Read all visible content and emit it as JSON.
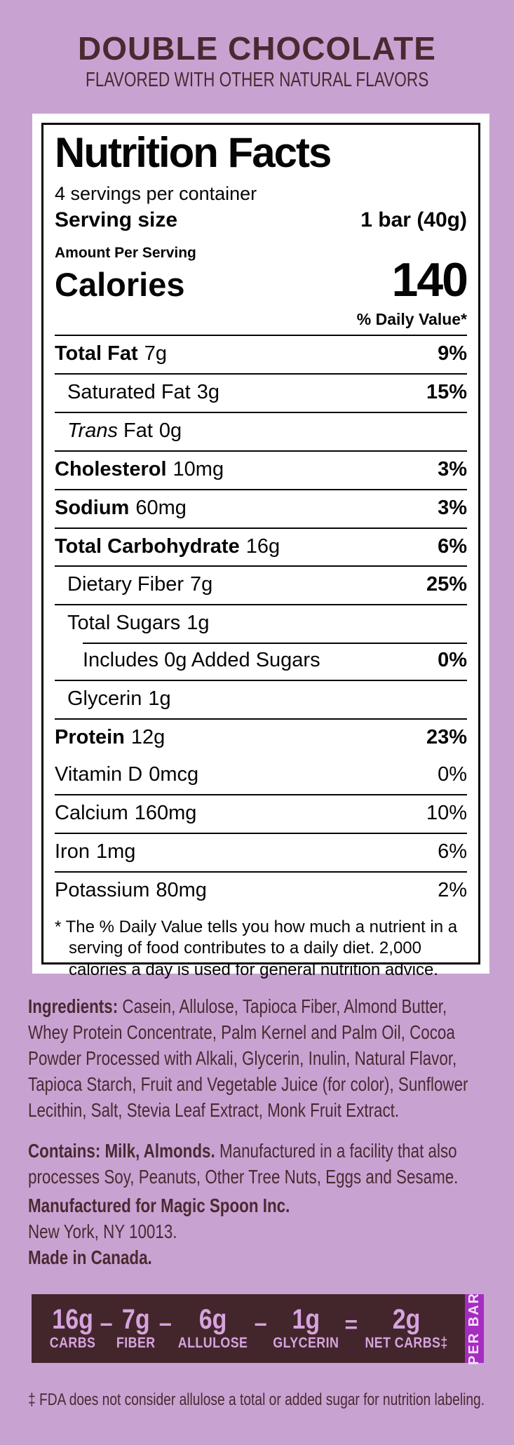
{
  "header": {
    "title": "DOUBLE CHOCOLATE",
    "subtitle": "FLAVORED WITH OTHER NATURAL FLAVORS"
  },
  "nutrition_facts": {
    "title": "Nutrition Facts",
    "servings_per_container": "4 servings per container",
    "serving_size_label": "Serving size",
    "serving_size_value": "1 bar (40g)",
    "amount_per_serving": "Amount Per Serving",
    "calories_label": "Calories",
    "calories_value": "140",
    "daily_value_header": "% Daily Value*",
    "rows": [
      {
        "name": "Total Fat",
        "amount": "7g",
        "dv": "9%"
      },
      {
        "name": "Saturated Fat",
        "amount": "3g",
        "dv": "15%"
      },
      {
        "name_italic": "Trans",
        "name": "Fat",
        "amount": "0g",
        "dv": ""
      },
      {
        "name": "Cholesterol",
        "amount": "10mg",
        "dv": "3%"
      },
      {
        "name": "Sodium",
        "amount": "60mg",
        "dv": "3%"
      },
      {
        "name": "Total Carbohydrate",
        "amount": "16g",
        "dv": "6%"
      },
      {
        "name": "Dietary Fiber",
        "amount": "7g",
        "dv": "25%"
      },
      {
        "name": "Total Sugars",
        "amount": "1g",
        "dv": ""
      },
      {
        "name": "Includes 0g Added Sugars",
        "amount": "",
        "dv": "0%"
      },
      {
        "name": "Glycerin",
        "amount": "1g",
        "dv": ""
      },
      {
        "name": "Protein",
        "amount": "12g",
        "dv": "23%"
      }
    ],
    "vitamins": [
      {
        "name": "Vitamin D",
        "amount": "0mcg",
        "dv": "0%"
      },
      {
        "name": "Calcium",
        "amount": "160mg",
        "dv": "10%"
      },
      {
        "name": "Iron",
        "amount": "1mg",
        "dv": "6%"
      },
      {
        "name": "Potassium",
        "amount": "80mg",
        "dv": "2%"
      }
    ],
    "footnote": "* The % Daily Value tells you how much a nutrient in a serving of food contributes to a daily diet. 2,000 calories a day is used for general nutrition advice."
  },
  "ingredients": {
    "label": "Ingredients:",
    "text": " Casein, Allulose, Tapioca Fiber, Almond Butter, Whey Protein Concentrate, Palm Kernel and Palm Oil, Cocoa Powder Processed with Alkali, Glycerin, Inulin, Natural Flavor, Tapioca Starch, Fruit and Vegetable Juice (for color), Sunflower Lecithin, Salt, Stevia Leaf Extract, Monk Fruit Extract."
  },
  "contains": {
    "label": "Contains: Milk, Almonds.",
    "text": " Manufactured in a facility that also processes Soy, Peanuts, Other Tree Nuts, Eggs and Sesame."
  },
  "manufacturer": {
    "line1": "Manufactured for Magic Spoon Inc.",
    "line2": "New York, NY 10013.",
    "line3": "Made in Canada."
  },
  "net_carbs_bar": {
    "items": [
      {
        "value": "16g",
        "label": "CARBS"
      },
      {
        "value": "7g",
        "label": "FIBER"
      },
      {
        "value": "6g",
        "label": "ALLULOSE"
      },
      {
        "value": "1g",
        "label": "GLYCERIN"
      },
      {
        "value": "2g",
        "label": "NET CARBS‡"
      }
    ],
    "operators": [
      "−",
      "−",
      "−",
      "="
    ],
    "side_label": "PER BAR"
  },
  "fda_note": "‡ FDA does not consider allulose a total or added sugar for nutrition labeling.",
  "colors": {
    "bg": "#c8a3d2",
    "brown": "#4a2931",
    "ink": "#050505",
    "panel": "#ffffff",
    "bar_bg": "#42262b",
    "bar_text": "#d7a3de",
    "tab_bg": "#a72cc2",
    "tab_text": "#f2e2f7"
  }
}
